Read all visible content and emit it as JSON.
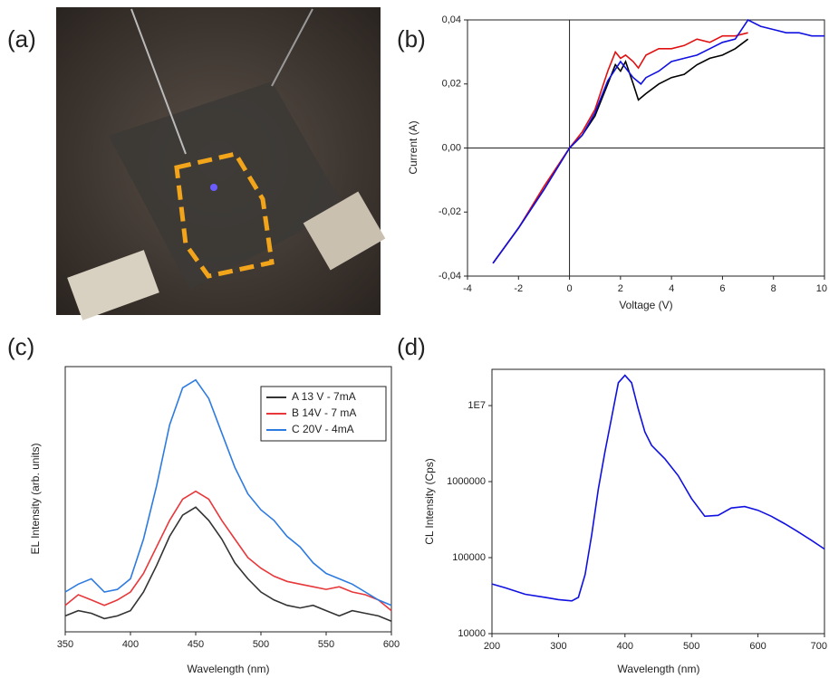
{
  "panel_labels": [
    "(a)",
    "(b)",
    "(c)",
    "(d)"
  ],
  "chart_data": [
    {
      "type": "line",
      "x_label": "Voltage (V)",
      "y_label": "Current (A)",
      "xlim": [
        -4,
        10
      ],
      "xticks": [
        -4,
        -2,
        0,
        2,
        4,
        6,
        8,
        10
      ],
      "ylim": [
        -0.04,
        0.04
      ],
      "yticks": [
        {
          "value": -0.04,
          "label": "-0,04"
        },
        {
          "value": -0.02,
          "label": "-0,02"
        },
        {
          "value": 0,
          "label": "0,00"
        },
        {
          "value": 0.02,
          "label": "0,02"
        },
        {
          "value": 0.04,
          "label": "0,04"
        }
      ],
      "zero_lines": true,
      "series": [
        {
          "color": "#000000",
          "x": [
            -3,
            -2,
            -1,
            0,
            0.5,
            1,
            1.5,
            1.8,
            2,
            2.2,
            2.5,
            2.7,
            3,
            3.5,
            4,
            4.5,
            5,
            5.5,
            6,
            6.5,
            7
          ],
          "values": [
            -0.036,
            -0.025,
            -0.013,
            0,
            0.004,
            0.01,
            0.02,
            0.026,
            0.024,
            0.027,
            0.02,
            0.015,
            0.017,
            0.02,
            0.022,
            0.023,
            0.026,
            0.028,
            0.029,
            0.031,
            0.034
          ]
        },
        {
          "color": "#e01010",
          "x": [
            -3,
            -2,
            -1,
            0,
            0.5,
            1,
            1.5,
            1.8,
            2,
            2.2,
            2.5,
            2.7,
            3,
            3.5,
            4,
            4.5,
            5,
            5.5,
            6,
            6.5,
            7
          ],
          "values": [
            -0.036,
            -0.025,
            -0.012,
            0,
            0.005,
            0.012,
            0.024,
            0.03,
            0.028,
            0.029,
            0.027,
            0.025,
            0.029,
            0.031,
            0.031,
            0.032,
            0.034,
            0.033,
            0.035,
            0.035,
            0.036
          ]
        },
        {
          "color": "#1010e0",
          "x": [
            -3,
            -2,
            -1,
            0,
            0.5,
            1,
            1.5,
            2,
            2.5,
            2.8,
            3,
            3.5,
            4,
            4.5,
            5,
            5.5,
            6,
            6.5,
            7,
            7.5,
            8,
            8.5,
            9,
            9.5,
            10
          ],
          "values": [
            -0.036,
            -0.025,
            -0.013,
            0,
            0.004,
            0.011,
            0.021,
            0.027,
            0.022,
            0.02,
            0.022,
            0.024,
            0.027,
            0.028,
            0.029,
            0.031,
            0.033,
            0.034,
            0.04,
            0.038,
            0.037,
            0.036,
            0.036,
            0.035,
            0.035
          ]
        }
      ]
    },
    {
      "type": "line",
      "x_label": "Wavelength (nm)",
      "y_label": "EL Intensity (arb. units)",
      "xlim": [
        350,
        600
      ],
      "xticks": [
        350,
        400,
        450,
        500,
        550,
        600
      ],
      "ylim": [
        0,
        100
      ],
      "legend": "upper right",
      "series": [
        {
          "name": "A 13 V - 7mA",
          "color": "#333333",
          "x": [
            350,
            360,
            370,
            380,
            390,
            400,
            410,
            420,
            430,
            440,
            450,
            460,
            470,
            480,
            490,
            500,
            510,
            520,
            530,
            540,
            550,
            560,
            570,
            580,
            590,
            600
          ],
          "values": [
            6,
            8,
            7,
            5,
            6,
            8,
            15,
            25,
            36,
            44,
            47,
            42,
            35,
            26,
            20,
            15,
            12,
            10,
            9,
            10,
            8,
            6,
            8,
            7,
            6,
            4
          ]
        },
        {
          "name": "B 14V - 7 mA",
          "color": "#e8373a",
          "x": [
            350,
            360,
            370,
            380,
            390,
            400,
            410,
            420,
            430,
            440,
            450,
            460,
            470,
            480,
            490,
            500,
            510,
            520,
            530,
            540,
            550,
            560,
            570,
            580,
            590,
            600
          ],
          "values": [
            10,
            14,
            12,
            10,
            12,
            15,
            22,
            32,
            42,
            50,
            53,
            50,
            42,
            35,
            28,
            24,
            21,
            19,
            18,
            17,
            16,
            17,
            15,
            14,
            12,
            8
          ]
        },
        {
          "name": "C 20V - 4mA",
          "color": "#2d7be0",
          "x": [
            350,
            360,
            370,
            380,
            390,
            400,
            410,
            420,
            430,
            440,
            450,
            460,
            470,
            480,
            490,
            500,
            510,
            520,
            530,
            540,
            550,
            560,
            570,
            580,
            590,
            600
          ],
          "values": [
            15,
            18,
            20,
            15,
            16,
            20,
            35,
            55,
            78,
            92,
            95,
            88,
            75,
            62,
            52,
            46,
            42,
            36,
            32,
            26,
            22,
            20,
            18,
            15,
            12,
            10
          ]
        }
      ]
    },
    {
      "type": "line",
      "x_label": "Wavelength (nm)",
      "y_label": "CL Intensity (Cps)",
      "xlim": [
        200,
        700
      ],
      "xticks": [
        200,
        300,
        400,
        500,
        600,
        700
      ],
      "ylim": [
        10000,
        30000000
      ],
      "log_scale_y": true,
      "yticks": [
        10000,
        100000,
        1000000,
        {
          "value": 10000000,
          "label": "1E7"
        }
      ],
      "series": [
        {
          "color": "#1010e0",
          "x": [
            200,
            220,
            250,
            280,
            300,
            320,
            330,
            340,
            350,
            360,
            370,
            380,
            390,
            400,
            410,
            420,
            430,
            440,
            460,
            480,
            500,
            520,
            540,
            560,
            580,
            600,
            620,
            640,
            660,
            680,
            700
          ],
          "values": [
            45000,
            40000,
            33000,
            30000,
            28000,
            27000,
            30000,
            60000,
            200000,
            800000,
            2500000,
            7000000,
            20000000,
            25000000,
            20000000,
            9000000,
            4500000,
            3000000,
            2000000,
            1200000,
            600000,
            350000,
            360000,
            450000,
            470000,
            420000,
            350000,
            280000,
            220000,
            170000,
            130000
          ]
        }
      ]
    }
  ]
}
